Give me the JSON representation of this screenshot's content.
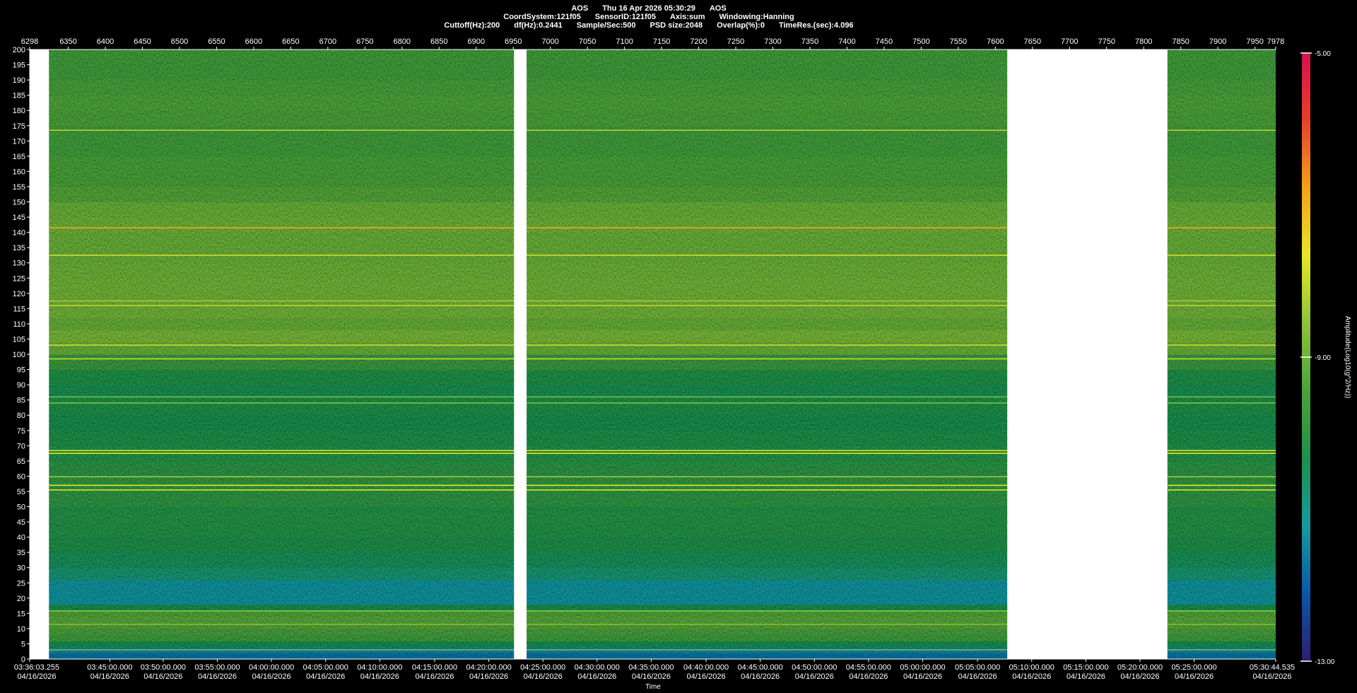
{
  "header": {
    "line1": [
      "AOS",
      "Thu 16 Apr 2026 05:30:29",
      "AOS"
    ],
    "line2": [
      "CoordSystem:121f05",
      "SensorID:121f05",
      "Axis:sum",
      "Windowing:Hanning"
    ],
    "line3": [
      "Cuttoff(Hz):200",
      "df(Hz):0.2441",
      "Sample/Sec:500",
      "PSD size:2048",
      "Overlap(%):0",
      "TimeRes.(sec):4.096"
    ]
  },
  "chart_data": {
    "type": "heatmap",
    "title": "",
    "xlabel": "Time",
    "ylabel": "",
    "colorbar_label": "Amplitude(Log10(g^2/Hz))",
    "colorbar_range": [
      -13.0,
      -5.0
    ],
    "colorbar_ticks": [
      "-5.00",
      "-9.00",
      "-13.00"
    ],
    "colors": [
      "#2a1f6e",
      "#0c57a8",
      "#169a9c",
      "#1f8f4c",
      "#4da23a",
      "#8fc23a",
      "#e6e627",
      "#f5a21a",
      "#e8402a",
      "#d6104e"
    ],
    "y_range": [
      0,
      200
    ],
    "y_ticks": [
      0,
      5,
      10,
      15,
      20,
      25,
      30,
      35,
      40,
      45,
      50,
      55,
      60,
      65,
      70,
      75,
      80,
      85,
      90,
      95,
      100,
      105,
      110,
      115,
      120,
      125,
      130,
      135,
      140,
      145,
      150,
      155,
      160,
      165,
      170,
      175,
      180,
      185,
      190,
      195,
      200
    ],
    "index_range": [
      6298,
      7978
    ],
    "index_ticks": [
      6298,
      6350,
      6400,
      6450,
      6500,
      6550,
      6600,
      6650,
      6700,
      6750,
      6800,
      6850,
      6900,
      6950,
      7000,
      7050,
      7100,
      7150,
      7200,
      7250,
      7300,
      7350,
      7400,
      7450,
      7500,
      7550,
      7600,
      7650,
      7700,
      7750,
      7800,
      7850,
      7900,
      7950,
      7978
    ],
    "time_ticks": [
      {
        "index": 6298,
        "time": "03:36:03.255",
        "date": "04/16/2026"
      },
      {
        "index": 6406,
        "time": "03:45:00.000",
        "date": "04/16/2026"
      },
      {
        "index": 6478,
        "time": "03:50:00.000",
        "date": "04/16/2026"
      },
      {
        "index": 6551,
        "time": "03:55:00.000",
        "date": "04/16/2026"
      },
      {
        "index": 6624,
        "time": "04:00:00.000",
        "date": "04/16/2026"
      },
      {
        "index": 6697,
        "time": "04:05:00.000",
        "date": "04/16/2026"
      },
      {
        "index": 6770,
        "time": "04:10:00.000",
        "date": "04/16/2026"
      },
      {
        "index": 6844,
        "time": "04:15:00.000",
        "date": "04/16/2026"
      },
      {
        "index": 6917,
        "time": "04:20:00.000",
        "date": "04/16/2026"
      },
      {
        "index": 6990,
        "time": "04:25:00.000",
        "date": "04/16/2026"
      },
      {
        "index": 7063,
        "time": "04:30:00.000",
        "date": "04/16/2026"
      },
      {
        "index": 7136,
        "time": "04:35:00.000",
        "date": "04/16/2026"
      },
      {
        "index": 7210,
        "time": "04:40:00.000",
        "date": "04/16/2026"
      },
      {
        "index": 7283,
        "time": "04:45:00.000",
        "date": "04/16/2026"
      },
      {
        "index": 7356,
        "time": "04:50:00.000",
        "date": "04/16/2026"
      },
      {
        "index": 7429,
        "time": "04:55:00.000",
        "date": "04/16/2026"
      },
      {
        "index": 7502,
        "time": "05:00:00.000",
        "date": "04/16/2026"
      },
      {
        "index": 7576,
        "time": "05:05:00.000",
        "date": "04/16/2026"
      },
      {
        "index": 7649,
        "time": "05:10:00.000",
        "date": "04/16/2026"
      },
      {
        "index": 7722,
        "time": "05:15:00.000",
        "date": "04/16/2026"
      },
      {
        "index": 7795,
        "time": "05:20:00.000",
        "date": "04/16/2026"
      },
      {
        "index": 7868,
        "time": "05:25:00.000",
        "date": "04/16/2026"
      },
      {
        "index": 7978,
        "time": "05:30:44.535",
        "date": "04/16/2026"
      }
    ],
    "data_segments": [
      [
        6324,
        6951
      ],
      [
        6968,
        7616
      ],
      [
        7832,
        7978
      ]
    ],
    "frequency_profile": [
      {
        "f": 0,
        "v": -11.6
      },
      {
        "f": 2,
        "v": -11.8
      },
      {
        "f": 4,
        "v": -11.2
      },
      {
        "f": 6,
        "v": -9.5
      },
      {
        "f": 8,
        "v": -9.9
      },
      {
        "f": 10,
        "v": -9.2
      },
      {
        "f": 12,
        "v": -9.5
      },
      {
        "f": 14,
        "v": -9.1
      },
      {
        "f": 16,
        "v": -9.7
      },
      {
        "f": 18,
        "v": -11.0
      },
      {
        "f": 22,
        "v": -11.6
      },
      {
        "f": 26,
        "v": -11.0
      },
      {
        "f": 30,
        "v": -10.6
      },
      {
        "f": 35,
        "v": -10.4
      },
      {
        "f": 40,
        "v": -10.2
      },
      {
        "f": 45,
        "v": -10.2
      },
      {
        "f": 50,
        "v": -10.1
      },
      {
        "f": 55,
        "v": -9.9
      },
      {
        "f": 60,
        "v": -10.0
      },
      {
        "f": 65,
        "v": -10.1
      },
      {
        "f": 70,
        "v": -10.2
      },
      {
        "f": 75,
        "v": -10.4
      },
      {
        "f": 80,
        "v": -10.3
      },
      {
        "f": 85,
        "v": -10.3
      },
      {
        "f": 90,
        "v": -10.5
      },
      {
        "f": 95,
        "v": -10.0
      },
      {
        "f": 100,
        "v": -9.6
      },
      {
        "f": 104,
        "v": -8.5
      },
      {
        "f": 108,
        "v": -9.2
      },
      {
        "f": 112,
        "v": -9.0
      },
      {
        "f": 118,
        "v": -8.9
      },
      {
        "f": 125,
        "v": -9.0
      },
      {
        "f": 130,
        "v": -9.0
      },
      {
        "f": 135,
        "v": -9.1
      },
      {
        "f": 140,
        "v": -9.0
      },
      {
        "f": 145,
        "v": -9.0
      },
      {
        "f": 150,
        "v": -9.1
      },
      {
        "f": 155,
        "v": -9.6
      },
      {
        "f": 160,
        "v": -9.4
      },
      {
        "f": 165,
        "v": -9.6
      },
      {
        "f": 170,
        "v": -9.7
      },
      {
        "f": 175,
        "v": -9.6
      },
      {
        "f": 180,
        "v": -9.3
      },
      {
        "f": 185,
        "v": -9.5
      },
      {
        "f": 190,
        "v": -9.6
      },
      {
        "f": 195,
        "v": -9.7
      },
      {
        "f": 200,
        "v": -9.6
      }
    ],
    "lines": [
      {
        "f": 3.0,
        "v": -8.8
      },
      {
        "f": 11.4,
        "v": -8.6
      },
      {
        "f": 15.8,
        "v": -8.5
      },
      {
        "f": 55.5,
        "v": -7.8
      },
      {
        "f": 57.0,
        "v": -7.7
      },
      {
        "f": 59.8,
        "v": -8.3
      },
      {
        "f": 67.5,
        "v": -7.7
      },
      {
        "f": 68.4,
        "v": -7.8
      },
      {
        "f": 84.0,
        "v": -8.7
      },
      {
        "f": 86.0,
        "v": -8.8
      },
      {
        "f": 98.5,
        "v": -7.9
      },
      {
        "f": 103.0,
        "v": -7.9
      },
      {
        "f": 116.0,
        "v": -8.1
      },
      {
        "f": 117.5,
        "v": -8.3
      },
      {
        "f": 132.5,
        "v": -7.9
      },
      {
        "f": 141.5,
        "v": -6.9
      },
      {
        "f": 173.5,
        "v": -8.2
      }
    ]
  }
}
